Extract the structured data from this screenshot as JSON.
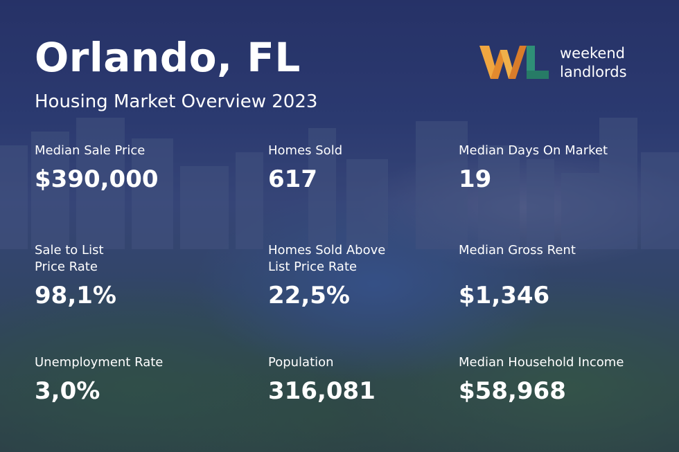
{
  "header": {
    "title": "Orlando, FL",
    "subtitle": "Housing Market Overview 2023"
  },
  "logo": {
    "mark": "WL",
    "line1": "weekend",
    "line2": "landlords",
    "colors": {
      "orange": "#e8a13a",
      "green": "#2f8f77",
      "dark": "#2a5a8a"
    }
  },
  "stats": [
    {
      "label": "Median Sale Price",
      "value": "$390,000"
    },
    {
      "label": "Homes Sold",
      "value": "617"
    },
    {
      "label": "Median Days On Market",
      "value": "19"
    },
    {
      "label": "Sale to List\nPrice Rate",
      "value": "98,1%"
    },
    {
      "label": "Homes Sold Above\nList Price Rate",
      "value": "22,5%"
    },
    {
      "label": "Median Gross Rent",
      "value": "$1,346"
    },
    {
      "label": "Unemployment Rate",
      "value": "3,0%"
    },
    {
      "label": "Population",
      "value": "316,081"
    },
    {
      "label": "Median Household Income",
      "value": "$58,968"
    }
  ]
}
